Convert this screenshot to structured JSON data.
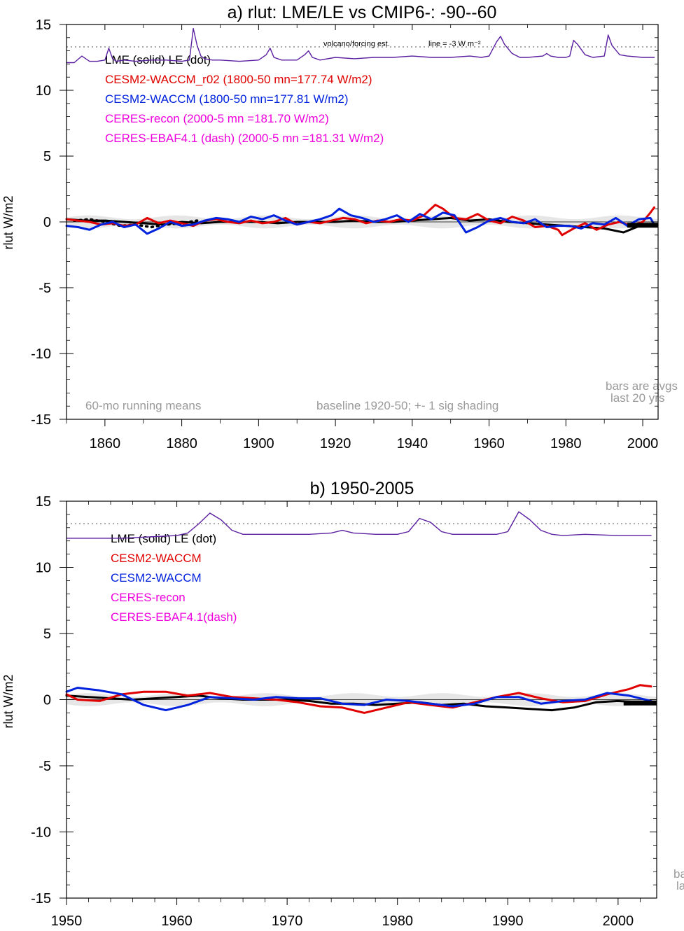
{
  "chart_data": [
    {
      "type": "line",
      "title": "a) rlut: LME/LE vs CMIP6-: -90--60",
      "ylabel": "rlut W/m2",
      "xlabel": "",
      "xlim": [
        1850,
        2004
      ],
      "ylim": [
        -15,
        15
      ],
      "xticks": [
        1860,
        1880,
        1900,
        1920,
        1940,
        1960,
        1980,
        2000
      ],
      "xtick_labels": [
        "1860",
        "1880",
        "1900",
        "1920",
        "1940",
        "1960",
        "1980",
        "2000"
      ],
      "yticks": [
        -15,
        -10,
        -5,
        0,
        5,
        10,
        15
      ],
      "ytick_labels": [
        "-15",
        "-10",
        "-5",
        "0",
        "5",
        "10",
        "15"
      ],
      "legend": [
        {
          "text": "LME (solid)   LE (dot)",
          "color": "#000000"
        },
        {
          "text": "CESM2-WACCM_r02 (1800-50 mn=177.74 W/m2)",
          "color": "#e00000"
        },
        {
          "text": "CESM2-WACCM (1800-50 mn=177.81 W/m2)",
          "color": "#0022dd"
        },
        {
          "text": "CERES-recon (2000-5 mn =181.70 W/m2)",
          "color": "#ee00dd"
        },
        {
          "text": "CERES-EBAF4.1 (dash) (2000-5 mn =181.31 W/m2)",
          "color": "#ee00dd"
        }
      ],
      "annotations": {
        "volcano": "volcano/forcing est.",
        "line_note": "line = -3 W m⁻²",
        "running": "60-mo running means",
        "baseline": "baseline 1920-50; +- 1 sig shading",
        "bars1": "bars are avgs",
        "bars2": "last 20 yrs"
      },
      "reference_line": 13.3,
      "series": [
        {
          "name": "LME",
          "color": "#000000",
          "style": "solid",
          "x": [
            1850,
            1855,
            1860,
            1865,
            1870,
            1875,
            1880,
            1885,
            1890,
            1895,
            1900,
            1905,
            1910,
            1915,
            1920,
            1925,
            1930,
            1935,
            1940,
            1945,
            1950,
            1955,
            1960,
            1965,
            1970,
            1975,
            1980,
            1985,
            1990,
            1995,
            2000,
            2003
          ],
          "y": [
            0.2,
            0.1,
            0.1,
            0.0,
            -0.1,
            -0.2,
            0.0,
            -0.1,
            0.0,
            0.0,
            0.0,
            -0.1,
            0.0,
            0.0,
            0.0,
            0.1,
            0.0,
            0.0,
            0.1,
            0.2,
            0.3,
            0.1,
            0.2,
            0.0,
            -0.1,
            -0.2,
            -0.3,
            -0.4,
            -0.5,
            -0.8,
            -0.2,
            -0.3
          ]
        },
        {
          "name": "LE",
          "color": "#000000",
          "style": "dot",
          "x": [
            1852,
            1856,
            1860,
            1864,
            1868,
            1872,
            1876,
            1880,
            1884
          ],
          "y": [
            0.1,
            0.2,
            0.0,
            -0.3,
            -0.2,
            -0.4,
            -0.2,
            -0.1,
            0.1
          ]
        },
        {
          "name": "CESM2-WACCM_r02",
          "color": "#e00000",
          "style": "solid",
          "x": [
            1850,
            1853,
            1856,
            1859,
            1862,
            1865,
            1868,
            1871,
            1874,
            1877,
            1880,
            1883,
            1886,
            1889,
            1892,
            1895,
            1898,
            1901,
            1904,
            1907,
            1910,
            1913,
            1916,
            1919,
            1922,
            1925,
            1928,
            1931,
            1934,
            1937,
            1940,
            1943,
            1946,
            1948,
            1951,
            1954,
            1957,
            1960,
            1963,
            1966,
            1969,
            1972,
            1975,
            1978,
            1979,
            1982,
            1985,
            1988,
            1991,
            1994,
            1997,
            2000,
            2002,
            2003
          ],
          "y": [
            0.2,
            0.1,
            0.0,
            -0.2,
            -0.1,
            -0.3,
            -0.2,
            0.3,
            -0.1,
            0.1,
            -0.1,
            -0.3,
            0.1,
            0.2,
            0.0,
            -0.1,
            0.1,
            -0.1,
            0.0,
            0.3,
            -0.2,
            0.0,
            -0.1,
            0.1,
            0.3,
            0.2,
            -0.1,
            0.1,
            0.0,
            0.2,
            0.1,
            0.5,
            1.3,
            1.0,
            0.3,
            0.2,
            0.6,
            0.1,
            -0.1,
            0.4,
            0.1,
            -0.4,
            -0.3,
            -0.6,
            -1.0,
            -0.5,
            -0.1,
            -0.6,
            -0.2,
            0.0,
            -0.3,
            0.0,
            0.7,
            1.1
          ]
        },
        {
          "name": "CESM2-WACCM",
          "color": "#0022dd",
          "style": "solid",
          "x": [
            1850,
            1853,
            1856,
            1859,
            1862,
            1865,
            1868,
            1871,
            1874,
            1877,
            1880,
            1883,
            1886,
            1889,
            1892,
            1895,
            1898,
            1901,
            1904,
            1907,
            1910,
            1913,
            1916,
            1919,
            1921,
            1924,
            1927,
            1930,
            1933,
            1936,
            1939,
            1942,
            1945,
            1948,
            1951,
            1954,
            1957,
            1960,
            1963,
            1966,
            1969,
            1972,
            1975,
            1978,
            1981,
            1984,
            1987,
            1990,
            1993,
            1996,
            1999,
            2002,
            2003
          ],
          "y": [
            -0.3,
            -0.4,
            -0.6,
            -0.2,
            0.0,
            -0.4,
            -0.2,
            -0.9,
            -0.5,
            0.0,
            -0.3,
            -0.2,
            0.1,
            0.3,
            0.2,
            0.0,
            0.4,
            0.2,
            0.5,
            0.1,
            -0.2,
            0.0,
            0.2,
            0.5,
            1.0,
            0.5,
            0.3,
            0.0,
            0.2,
            0.5,
            0.0,
            0.6,
            0.2,
            0.7,
            0.5,
            -0.8,
            -0.4,
            0.1,
            0.3,
            0.0,
            -0.1,
            0.2,
            -0.4,
            -0.3,
            -0.3,
            -0.5,
            -0.1,
            -0.2,
            0.3,
            -0.3,
            0.2,
            0.3,
            -0.2
          ]
        },
        {
          "name": "Volcano forcing est.",
          "color": "#5a1fa0",
          "style": "solid",
          "x": [
            1850,
            1852,
            1854,
            1856,
            1858,
            1860,
            1861,
            1862,
            1863,
            1865,
            1868,
            1872,
            1876,
            1880,
            1882,
            1883,
            1884,
            1885,
            1886,
            1888,
            1890,
            1895,
            1900,
            1902,
            1903,
            1904,
            1906,
            1908,
            1910,
            1912,
            1913,
            1914,
            1916,
            1920,
            1925,
            1930,
            1935,
            1940,
            1945,
            1950,
            1955,
            1958,
            1960,
            1962,
            1963,
            1964,
            1966,
            1968,
            1970,
            1974,
            1975,
            1976,
            1978,
            1980,
            1981,
            1982,
            1983,
            1985,
            1987,
            1990,
            1991,
            1992,
            1994,
            1996,
            2000,
            2003
          ],
          "y": [
            12.1,
            12.1,
            12.6,
            12.2,
            12.2,
            12.3,
            13.2,
            12.4,
            12.2,
            12.3,
            12.2,
            12.3,
            12.3,
            12.2,
            12.3,
            14.7,
            13.4,
            12.6,
            12.4,
            12.3,
            12.3,
            12.2,
            12.3,
            12.7,
            13.2,
            12.5,
            12.3,
            12.3,
            12.3,
            12.7,
            13.0,
            12.5,
            12.3,
            12.5,
            12.4,
            12.5,
            12.5,
            12.6,
            12.5,
            12.5,
            12.6,
            12.5,
            12.6,
            13.7,
            14.1,
            13.5,
            12.8,
            12.5,
            12.5,
            12.6,
            12.8,
            12.6,
            12.5,
            12.5,
            12.6,
            13.8,
            13.5,
            12.7,
            12.5,
            12.6,
            14.2,
            13.4,
            12.7,
            12.6,
            12.5,
            12.5
          ]
        }
      ]
    },
    {
      "type": "line",
      "title": "b) 1950-2005",
      "ylabel": "rlut W/m2",
      "xlabel": "",
      "xlim": [
        1950,
        2003.5
      ],
      "ylim": [
        -15,
        15
      ],
      "xticks": [
        1950,
        1960,
        1970,
        1980,
        1990,
        2000
      ],
      "xtick_labels": [
        "1950",
        "1960",
        "1970",
        "1980",
        "1990",
        "2000"
      ],
      "yticks": [
        -15,
        -10,
        -5,
        0,
        5,
        10,
        15
      ],
      "ytick_labels": [
        "-15",
        "-10",
        "-5",
        "0",
        "5",
        "10",
        "15"
      ],
      "legend": [
        {
          "text": "LME (solid)       LE (dot)",
          "color": "#000000"
        },
        {
          "text": "CESM2-WACCM",
          "color": "#e00000"
        },
        {
          "text": "CESM2-WACCM",
          "color": "#0022dd"
        },
        {
          "text": "CERES-recon",
          "color": "#ee00dd"
        },
        {
          "text": "CERES-EBAF4.1(dash)",
          "color": "#ee00dd"
        }
      ],
      "annotations": {
        "bars1": "ba",
        "bars2": "la"
      },
      "reference_line": 13.3,
      "series": [
        {
          "name": "LME",
          "color": "#000000",
          "style": "solid",
          "x": [
            1950,
            1952,
            1954,
            1956,
            1958,
            1960,
            1962,
            1964,
            1966,
            1968,
            1970,
            1972,
            1974,
            1976,
            1978,
            1980,
            1982,
            1984,
            1986,
            1988,
            1990,
            1992,
            1994,
            1996,
            1998,
            2000,
            2002,
            2003
          ],
          "y": [
            0.3,
            0.2,
            0.1,
            0.0,
            0.1,
            0.2,
            0.3,
            0.1,
            0.0,
            0.0,
            0.0,
            -0.1,
            -0.3,
            -0.3,
            -0.4,
            -0.3,
            -0.2,
            -0.4,
            -0.3,
            -0.5,
            -0.6,
            -0.7,
            -0.8,
            -0.6,
            -0.2,
            -0.1,
            -0.2,
            -0.3
          ]
        },
        {
          "name": "CESM2-WACCM_r02",
          "color": "#e00000",
          "style": "solid",
          "x": [
            1950,
            1951,
            1953,
            1955,
            1957,
            1959,
            1961,
            1963,
            1965,
            1967,
            1969,
            1971,
            1973,
            1975,
            1977,
            1979,
            1981,
            1983,
            1985,
            1987,
            1989,
            1991,
            1993,
            1995,
            1997,
            1999,
            2001,
            2002,
            2003
          ],
          "y": [
            0.4,
            0.0,
            -0.1,
            0.4,
            0.6,
            0.6,
            0.3,
            0.5,
            0.2,
            0.1,
            0.0,
            -0.2,
            -0.5,
            -0.6,
            -1.0,
            -0.6,
            -0.2,
            -0.4,
            -0.6,
            -0.2,
            0.2,
            0.5,
            0.1,
            -0.2,
            -0.1,
            0.4,
            0.8,
            1.1,
            1.0
          ]
        },
        {
          "name": "CESM2-WACCM",
          "color": "#0022dd",
          "style": "solid",
          "x": [
            1950,
            1951,
            1953,
            1955,
            1957,
            1959,
            1961,
            1963,
            1965,
            1967,
            1969,
            1971,
            1973,
            1975,
            1977,
            1979,
            1981,
            1983,
            1985,
            1987,
            1989,
            1991,
            1993,
            1995,
            1997,
            1999,
            2001,
            2003
          ],
          "y": [
            0.6,
            0.9,
            0.7,
            0.4,
            -0.4,
            -0.8,
            -0.4,
            0.2,
            0.1,
            0.0,
            0.2,
            0.1,
            0.1,
            -0.3,
            -0.4,
            0.0,
            -0.1,
            -0.3,
            -0.5,
            -0.3,
            0.2,
            0.2,
            -0.3,
            -0.1,
            0.0,
            0.5,
            0.3,
            -0.1
          ]
        },
        {
          "name": "Volcano forcing est.",
          "color": "#5a1fa0",
          "style": "solid",
          "x": [
            1950,
            1955,
            1960,
            1961,
            1962,
            1963,
            1964,
            1965,
            1966,
            1968,
            1970,
            1972,
            1974,
            1975,
            1976,
            1978,
            1980,
            1981,
            1982,
            1983,
            1984,
            1985,
            1987,
            1989,
            1990,
            1991,
            1992,
            1993,
            1994,
            1995,
            1997,
            2000,
            2003
          ],
          "y": [
            12.2,
            12.2,
            12.4,
            12.6,
            13.3,
            14.1,
            13.6,
            12.8,
            12.5,
            12.5,
            12.5,
            12.5,
            12.6,
            12.8,
            12.6,
            12.5,
            12.5,
            12.7,
            13.7,
            13.4,
            12.7,
            12.5,
            12.5,
            12.5,
            12.7,
            14.2,
            13.6,
            12.8,
            12.5,
            12.4,
            12.5,
            12.4,
            12.4
          ]
        }
      ]
    }
  ]
}
